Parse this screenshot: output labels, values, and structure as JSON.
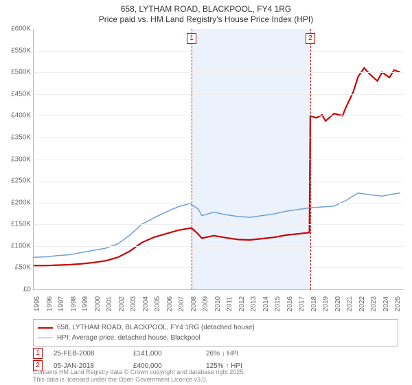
{
  "title": {
    "line1": "658, LYTHAM ROAD, BLACKPOOL, FY4 1RG",
    "line2": "Price paid vs. HM Land Registry's House Price Index (HPI)",
    "fontsize": 12,
    "color": "#333333"
  },
  "chart": {
    "type": "line",
    "background_color": "#ffffff",
    "grid_color": "#eeeeee",
    "axis_color": "#b6b6b6",
    "tick_font_color": "#666666",
    "tick_fontsize": 10,
    "x": {
      "min": 1995,
      "max": 2025.8,
      "ticks": [
        1995,
        1996,
        1997,
        1998,
        1999,
        2000,
        2001,
        2002,
        2003,
        2004,
        2005,
        2006,
        2007,
        2008,
        2009,
        2010,
        2011,
        2012,
        2013,
        2014,
        2015,
        2016,
        2017,
        2018,
        2019,
        2020,
        2021,
        2022,
        2023,
        2024,
        2025
      ],
      "label_rotation_deg": -90
    },
    "y": {
      "min": 0,
      "max": 600000,
      "tick_step": 50000,
      "prefix": "£",
      "suffix": "K",
      "divide_by": 1000
    },
    "shaded_region": {
      "x_start": 2008.15,
      "x_end": 2018.02,
      "fill": "#dbe8f7",
      "opacity": 0.55
    },
    "markers": [
      {
        "id": "1",
        "x": 2008.15,
        "box_color": "#cc0000",
        "dash": true
      },
      {
        "id": "2",
        "x": 2018.02,
        "box_color": "#cc0000",
        "dash": true
      }
    ],
    "series": [
      {
        "name": "658, LYTHAM ROAD, BLACKPOOL, FY4 1RG (detached house)",
        "color": "#cc0000",
        "width": 2.2,
        "points": [
          [
            1995,
            55000
          ],
          [
            1996,
            55000
          ],
          [
            1997,
            56000
          ],
          [
            1998,
            57000
          ],
          [
            1999,
            59000
          ],
          [
            2000,
            62000
          ],
          [
            2001,
            66000
          ],
          [
            2002,
            74000
          ],
          [
            2003,
            88000
          ],
          [
            2004,
            108000
          ],
          [
            2005,
            120000
          ],
          [
            2006,
            128000
          ],
          [
            2007,
            136000
          ],
          [
            2008,
            141000
          ],
          [
            2008.15,
            141000
          ],
          [
            2008.6,
            130000
          ],
          [
            2009,
            118000
          ],
          [
            2010,
            124000
          ],
          [
            2011,
            119000
          ],
          [
            2012,
            115000
          ],
          [
            2013,
            114000
          ],
          [
            2014,
            117000
          ],
          [
            2015,
            120000
          ],
          [
            2016,
            125000
          ],
          [
            2017,
            128000
          ],
          [
            2017.95,
            131000
          ],
          [
            2018.02,
            400000
          ],
          [
            2018.5,
            395000
          ],
          [
            2019,
            402000
          ],
          [
            2019.3,
            388000
          ],
          [
            2020,
            405000
          ],
          [
            2020.7,
            400000
          ],
          [
            2021,
            420000
          ],
          [
            2021.6,
            455000
          ],
          [
            2022,
            490000
          ],
          [
            2022.5,
            510000
          ],
          [
            2023,
            495000
          ],
          [
            2023.6,
            480000
          ],
          [
            2024,
            500000
          ],
          [
            2024.6,
            488000
          ],
          [
            2025,
            505000
          ],
          [
            2025.5,
            500000
          ]
        ]
      },
      {
        "name": "HPI: Average price, detached house, Blackpool",
        "color": "#6f9fd8",
        "width": 1.5,
        "points": [
          [
            1995,
            74000
          ],
          [
            1996,
            75000
          ],
          [
            1997,
            78000
          ],
          [
            1998,
            80000
          ],
          [
            1999,
            85000
          ],
          [
            2000,
            90000
          ],
          [
            2001,
            95000
          ],
          [
            2002,
            105000
          ],
          [
            2003,
            125000
          ],
          [
            2004,
            150000
          ],
          [
            2005,
            165000
          ],
          [
            2006,
            178000
          ],
          [
            2007,
            190000
          ],
          [
            2008,
            198000
          ],
          [
            2008.7,
            185000
          ],
          [
            2009,
            170000
          ],
          [
            2010,
            178000
          ],
          [
            2011,
            172000
          ],
          [
            2012,
            168000
          ],
          [
            2013,
            166000
          ],
          [
            2014,
            170000
          ],
          [
            2015,
            174000
          ],
          [
            2016,
            180000
          ],
          [
            2017,
            184000
          ],
          [
            2018,
            188000
          ],
          [
            2019,
            190000
          ],
          [
            2020,
            192000
          ],
          [
            2021,
            205000
          ],
          [
            2022,
            222000
          ],
          [
            2023,
            218000
          ],
          [
            2024,
            215000
          ],
          [
            2025,
            220000
          ],
          [
            2025.5,
            222000
          ]
        ]
      }
    ]
  },
  "legend": {
    "border_color": "#b6b6b6",
    "fontsize": 10,
    "text_color": "#555555",
    "items": [
      {
        "color": "#cc0000",
        "width": 2.2,
        "label": "658, LYTHAM ROAD, BLACKPOOL, FY4 1RG (detached house)"
      },
      {
        "color": "#6f9fd8",
        "width": 1.5,
        "label": "HPI: Average price, detached house, Blackpool"
      }
    ]
  },
  "events": [
    {
      "id": "1",
      "date": "25-FEB-2008",
      "price": "£141,000",
      "pct": "26% ↓ HPI"
    },
    {
      "id": "2",
      "date": "05-JAN-2018",
      "price": "£400,000",
      "pct": "125% ↑ HPI"
    }
  ],
  "footer": {
    "line1": "Contains HM Land Registry data © Crown copyright and database right 2025.",
    "line2": "This data is licensed under the Open Government Licence v3.0.",
    "color": "#888888",
    "fontsize": 9
  }
}
